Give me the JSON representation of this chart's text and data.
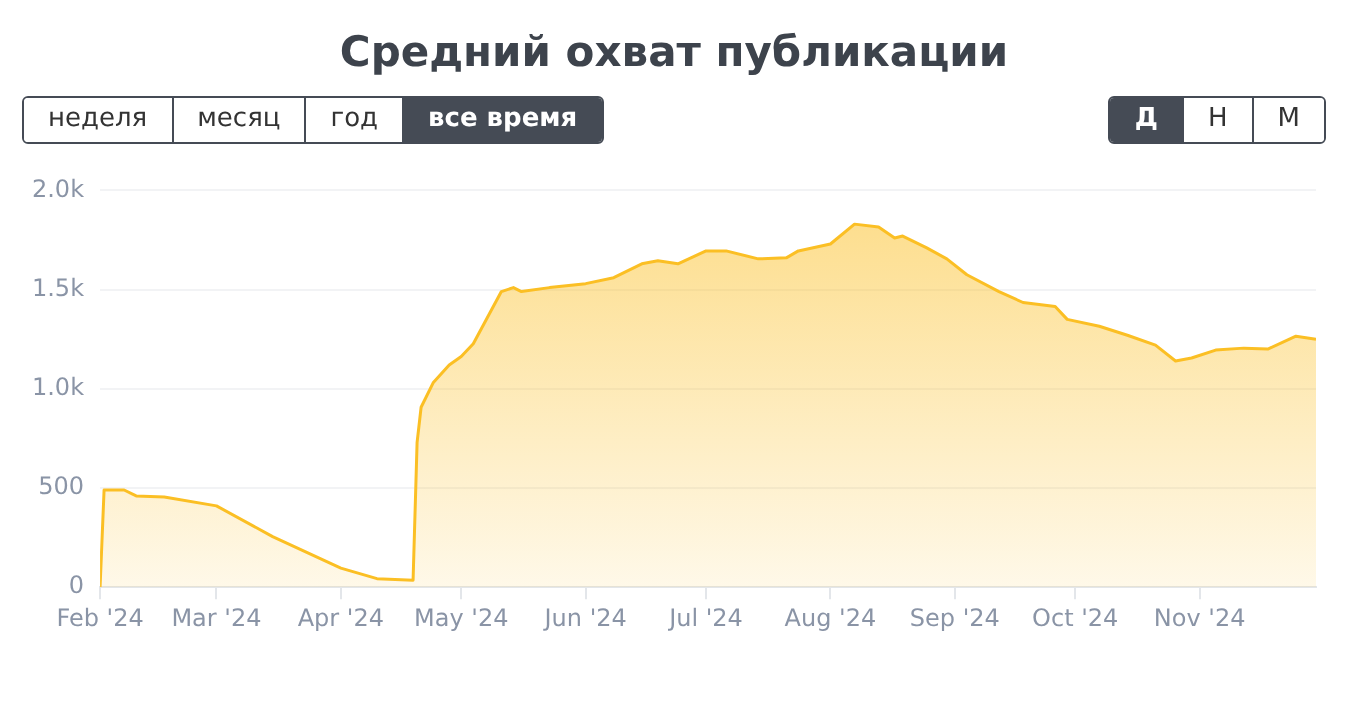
{
  "chart_data": {
    "type": "area",
    "title": "Средний охват публикации",
    "annotations": [
      "неделя",
      "месяц",
      "год",
      "все время",
      "Д",
      "Н",
      "М"
    ],
    "x": [
      "2024-02-01",
      "2024-02-02",
      "2024-02-07",
      "2024-02-10",
      "2024-02-17",
      "2024-03-01",
      "2024-03-15",
      "2024-04-01",
      "2024-04-10",
      "2024-04-19",
      "2024-04-20",
      "2024-04-21",
      "2024-04-24",
      "2024-04-28",
      "2024-05-01",
      "2024-05-04",
      "2024-05-11",
      "2024-05-14",
      "2024-05-16",
      "2024-05-23",
      "2024-06-01",
      "2024-06-08",
      "2024-06-15",
      "2024-06-19",
      "2024-06-24",
      "2024-07-01",
      "2024-07-06",
      "2024-07-14",
      "2024-07-21",
      "2024-07-24",
      "2024-08-01",
      "2024-08-07",
      "2024-08-13",
      "2024-08-17",
      "2024-08-19",
      "2024-08-25",
      "2024-08-30",
      "2024-09-04",
      "2024-09-12",
      "2024-09-18",
      "2024-09-26",
      "2024-09-29",
      "2024-10-07",
      "2024-10-14",
      "2024-10-21",
      "2024-10-26",
      "2024-10-30",
      "2024-11-05",
      "2024-11-12",
      "2024-11-18",
      "2024-11-25",
      "2024-11-30"
    ],
    "series": [
      {
        "color": "#fbbf24",
        "values": [
          0,
          490,
          490,
          460,
          455,
          410,
          255,
          96,
          43,
          35,
          730,
          907,
          1030,
          1120,
          1163,
          1227,
          1490,
          1510,
          1490,
          1510,
          1530,
          1560,
          1630,
          1645,
          1630,
          1695,
          1695,
          1655,
          1660,
          1695,
          1730,
          1830,
          1815,
          1760,
          1770,
          1710,
          1655,
          1575,
          1490,
          1435,
          1415,
          1350,
          1315,
          1270,
          1220,
          1140,
          1155,
          1195,
          1205,
          1200,
          1265,
          1250
        ]
      }
    ],
    "xlim": [
      "2024-02-01",
      "2024-11-30"
    ],
    "xticks": [
      {
        "value": "2024-02-01",
        "label": "Feb '24"
      },
      {
        "value": "2024-03-01",
        "label": "Mar '24"
      },
      {
        "value": "2024-04-01",
        "label": "Apr '24"
      },
      {
        "value": "2024-05-01",
        "label": "May '24"
      },
      {
        "value": "2024-06-01",
        "label": "Jun '24"
      },
      {
        "value": "2024-07-01",
        "label": "Jul '24"
      },
      {
        "value": "2024-08-01",
        "label": "Aug '24"
      },
      {
        "value": "2024-09-01",
        "label": "Sep '24"
      },
      {
        "value": "2024-10-01",
        "label": "Oct '24"
      },
      {
        "value": "2024-11-01",
        "label": "Nov '24"
      }
    ],
    "ylim": [
      0,
      2000
    ],
    "yticks": [
      0,
      500,
      {
        "value": 1000,
        "label": "1.0k"
      },
      {
        "value": 1500,
        "label": "1.5k"
      },
      {
        "value": 2000,
        "label": "2.0k"
      }
    ],
    "grid": "y",
    "legend": false,
    "marker": "none",
    "line_style": "solid"
  }
}
